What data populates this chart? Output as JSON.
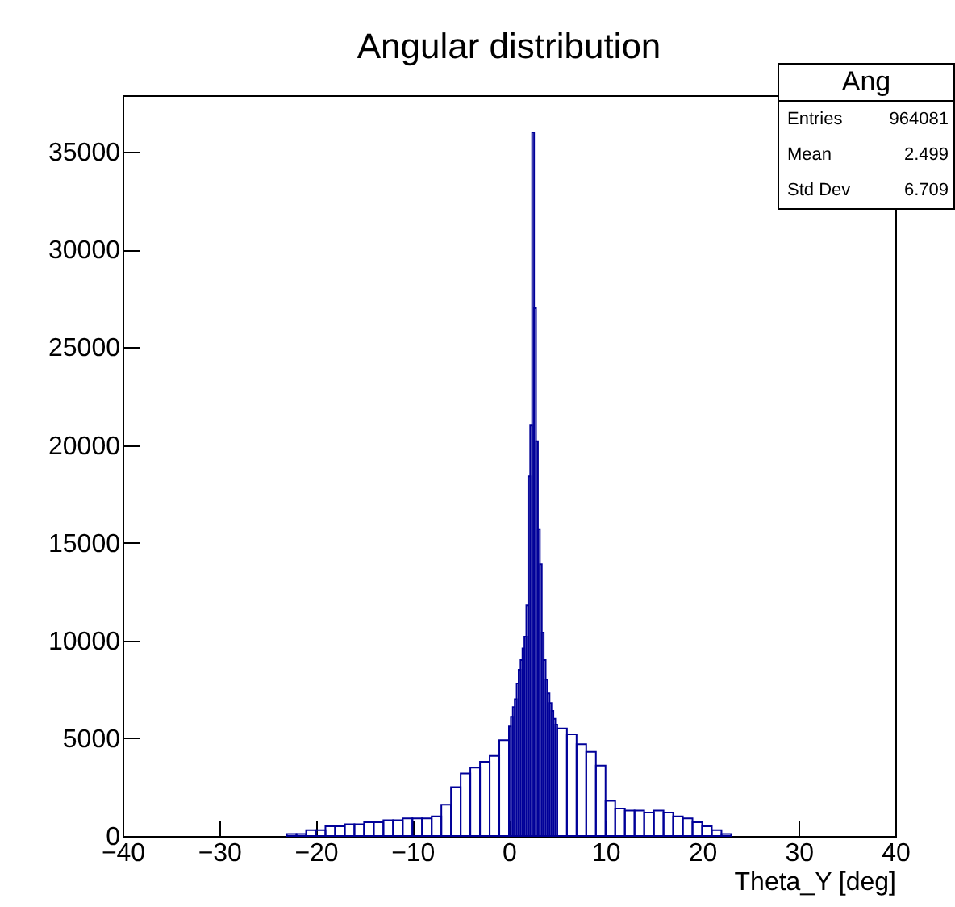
{
  "chart_data": {
    "type": "histogram",
    "title": "Angular distribution",
    "xlabel": "Theta_Y [deg]",
    "bins": [
      -23,
      -22,
      -21,
      -20,
      -19,
      -18,
      -17,
      -16,
      -15,
      -14,
      -13,
      -12,
      -11,
      -10,
      -9,
      -8,
      -7,
      -6,
      -5,
      -4,
      -3,
      -2,
      -1,
      0,
      0.2,
      0.4,
      0.6,
      0.8,
      1.0,
      1.2,
      1.4,
      1.6,
      1.8,
      2.0,
      2.2,
      2.4,
      2.6,
      2.8,
      3.0,
      3.2,
      3.4,
      3.6,
      3.8,
      4.0,
      4.2,
      4.4,
      4.6,
      4.8,
      5.0,
      6,
      7,
      8,
      9,
      10,
      11,
      12,
      13,
      14,
      15,
      16,
      17,
      18,
      19,
      20,
      21,
      22,
      23
    ],
    "values": [
      100,
      100,
      300,
      300,
      500,
      500,
      600,
      600,
      700,
      700,
      800,
      800,
      900,
      900,
      900,
      1000,
      1600,
      2500,
      3200,
      3500,
      3800,
      4100,
      4900,
      5600,
      6100,
      6600,
      7000,
      7800,
      8500,
      9000,
      9600,
      10200,
      11800,
      18400,
      21000,
      36000,
      27000,
      20200,
      15700,
      13900,
      10400,
      9000,
      8000,
      7300,
      6800,
      6400,
      6000,
      5700,
      5500,
      5200,
      4700,
      4300,
      3600,
      1800,
      1400,
      1300,
      1300,
      1200,
      1300,
      1200,
      1000,
      900,
      700,
      500,
      300,
      100
    ],
    "color": "#000099",
    "xlim": [
      -40,
      40
    ],
    "xticks": [
      -40,
      -30,
      -20,
      -10,
      0,
      10,
      20,
      30,
      40
    ],
    "ylim": [
      0,
      37900
    ],
    "yticks": [
      0,
      5000,
      10000,
      15000,
      20000,
      25000,
      30000,
      35000
    ],
    "annotations": [
      "Ang",
      "Entries",
      "964081",
      "Mean",
      "2.499",
      "Std Dev",
      "6.709"
    ]
  }
}
